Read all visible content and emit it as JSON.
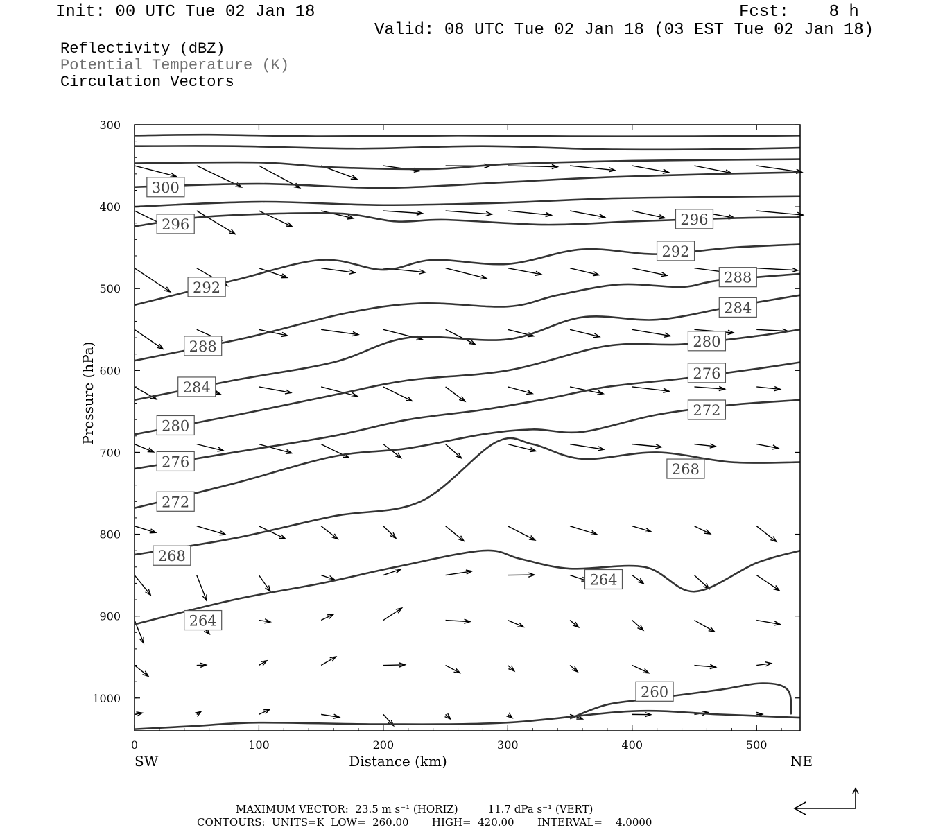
{
  "header": {
    "init": "Init: 00 UTC Tue 02 Jan 18",
    "fcst": "Fcst:    8 h",
    "valid": "Valid: 08 UTC Tue 02 Jan 18 (03 EST Tue 02 Jan 18)"
  },
  "legend": {
    "line1": "Reflectivity (dBZ)",
    "line2": "Potential Temperature (K)",
    "line3": "Circulation Vectors"
  },
  "footer": {
    "max_vector": "MAXIMUM VECTOR:  23.5 m s⁻¹ (HORIZ)         11.7 dPa s⁻¹ (VERT)",
    "contours": "CONTOURS:  UNITS=K  LOW=  260.00       HIGH=  420.00       INTERVAL=    4.0000"
  },
  "chart_data": {
    "type": "line",
    "title": "",
    "xlabel": "Distance (km)",
    "ylabel": "Pressure (hPa)",
    "x_end_labels": {
      "left": "SW",
      "right": "NE"
    },
    "xlim": [
      0,
      535
    ],
    "ylim": [
      1040,
      300
    ],
    "y_scale": "linear-inverted",
    "x_ticks": [
      0,
      100,
      200,
      300,
      400,
      500
    ],
    "y_ticks": [
      300,
      400,
      500,
      600,
      700,
      800,
      900,
      1000
    ],
    "grid": false,
    "contour_color": "#333333",
    "series": [
      {
        "name": "",
        "label": "",
        "x": [
          0,
          60,
          150,
          260,
          350,
          450,
          535
        ],
        "y": [
          313,
          312,
          314,
          313,
          314,
          314,
          313
        ]
      },
      {
        "name": "",
        "label": "",
        "x": [
          0,
          80,
          180,
          280,
          380,
          460,
          535
        ],
        "y": [
          326,
          326,
          329,
          326,
          330,
          330,
          328
        ]
      },
      {
        "name": "",
        "label": "",
        "x": [
          0,
          100,
          160,
          240,
          300,
          400,
          535
        ],
        "y": [
          347,
          346,
          352,
          354,
          348,
          344,
          342
        ]
      },
      {
        "name": "300",
        "label": "300",
        "x": [
          0,
          100,
          200,
          300,
          380,
          470,
          535
        ],
        "y": [
          376,
          372,
          377,
          370,
          364,
          360,
          358
        ]
      },
      {
        "name": "",
        "label": "",
        "x": [
          0,
          100,
          200,
          300,
          380,
          470,
          535
        ],
        "y": [
          400,
          394,
          398,
          395,
          390,
          388,
          387
        ]
      },
      {
        "name": "296",
        "label": "296",
        "x": [
          0,
          60,
          160,
          210,
          250,
          330,
          400,
          480,
          535
        ],
        "y": [
          424,
          412,
          408,
          418,
          416,
          422,
          418,
          414,
          413
        ]
      },
      {
        "name": "292",
        "label": "292",
        "x": [
          0,
          80,
          150,
          200,
          240,
          300,
          360,
          420,
          480,
          535
        ],
        "y": [
          520,
          490,
          465,
          477,
          465,
          470,
          452,
          458,
          450,
          446
        ]
      },
      {
        "name": "288",
        "label": "288",
        "x": [
          0,
          90,
          170,
          230,
          300,
          340,
          390,
          440,
          470,
          535
        ],
        "y": [
          588,
          560,
          530,
          518,
          522,
          508,
          495,
          498,
          490,
          482
        ]
      },
      {
        "name": "284",
        "label": "284",
        "x": [
          0,
          80,
          160,
          220,
          300,
          360,
          420,
          480,
          535
        ],
        "y": [
          636,
          612,
          590,
          560,
          562,
          535,
          538,
          522,
          508
        ]
      },
      {
        "name": "280",
        "label": "280",
        "x": [
          0,
          80,
          160,
          220,
          300,
          380,
          440,
          500,
          535
        ],
        "y": [
          678,
          655,
          630,
          612,
          600,
          570,
          568,
          558,
          550
        ]
      },
      {
        "name": "276",
        "label": "276",
        "x": [
          0,
          80,
          160,
          220,
          280,
          330,
          380,
          440,
          500,
          535
        ],
        "y": [
          720,
          700,
          680,
          660,
          648,
          635,
          620,
          610,
          598,
          590
        ]
      },
      {
        "name": "272",
        "label": "272",
        "x": [
          0,
          80,
          160,
          220,
          280,
          320,
          360,
          420,
          480,
          535
        ],
        "y": [
          768,
          738,
          705,
          695,
          678,
          672,
          675,
          654,
          642,
          636
        ]
      },
      {
        "name": "268",
        "label": "268",
        "x": [
          0,
          80,
          160,
          230,
          290,
          320,
          360,
          420,
          480,
          535
        ],
        "y": [
          825,
          805,
          778,
          760,
          688,
          690,
          708,
          700,
          712,
          712
        ]
      },
      {
        "name": "264",
        "label": "264",
        "x": [
          0,
          80,
          150,
          210,
          280,
          310,
          350,
          410,
          450,
          500,
          535
        ],
        "y": [
          910,
          880,
          860,
          840,
          820,
          830,
          842,
          840,
          870,
          835,
          820
        ]
      },
      {
        "name": "260",
        "label": "260",
        "x": [
          350,
          380,
          420,
          470,
          505,
          525,
          528
        ],
        "y": [
          1025,
          1008,
          1000,
          990,
          982,
          990,
          1020
        ]
      },
      {
        "name": "",
        "label": "",
        "x": [
          0,
          50,
          100,
          200,
          300,
          400,
          470,
          535
        ],
        "y": [
          1038,
          1034,
          1030,
          1032,
          1030,
          1016,
          1020,
          1024
        ]
      }
    ]
  }
}
